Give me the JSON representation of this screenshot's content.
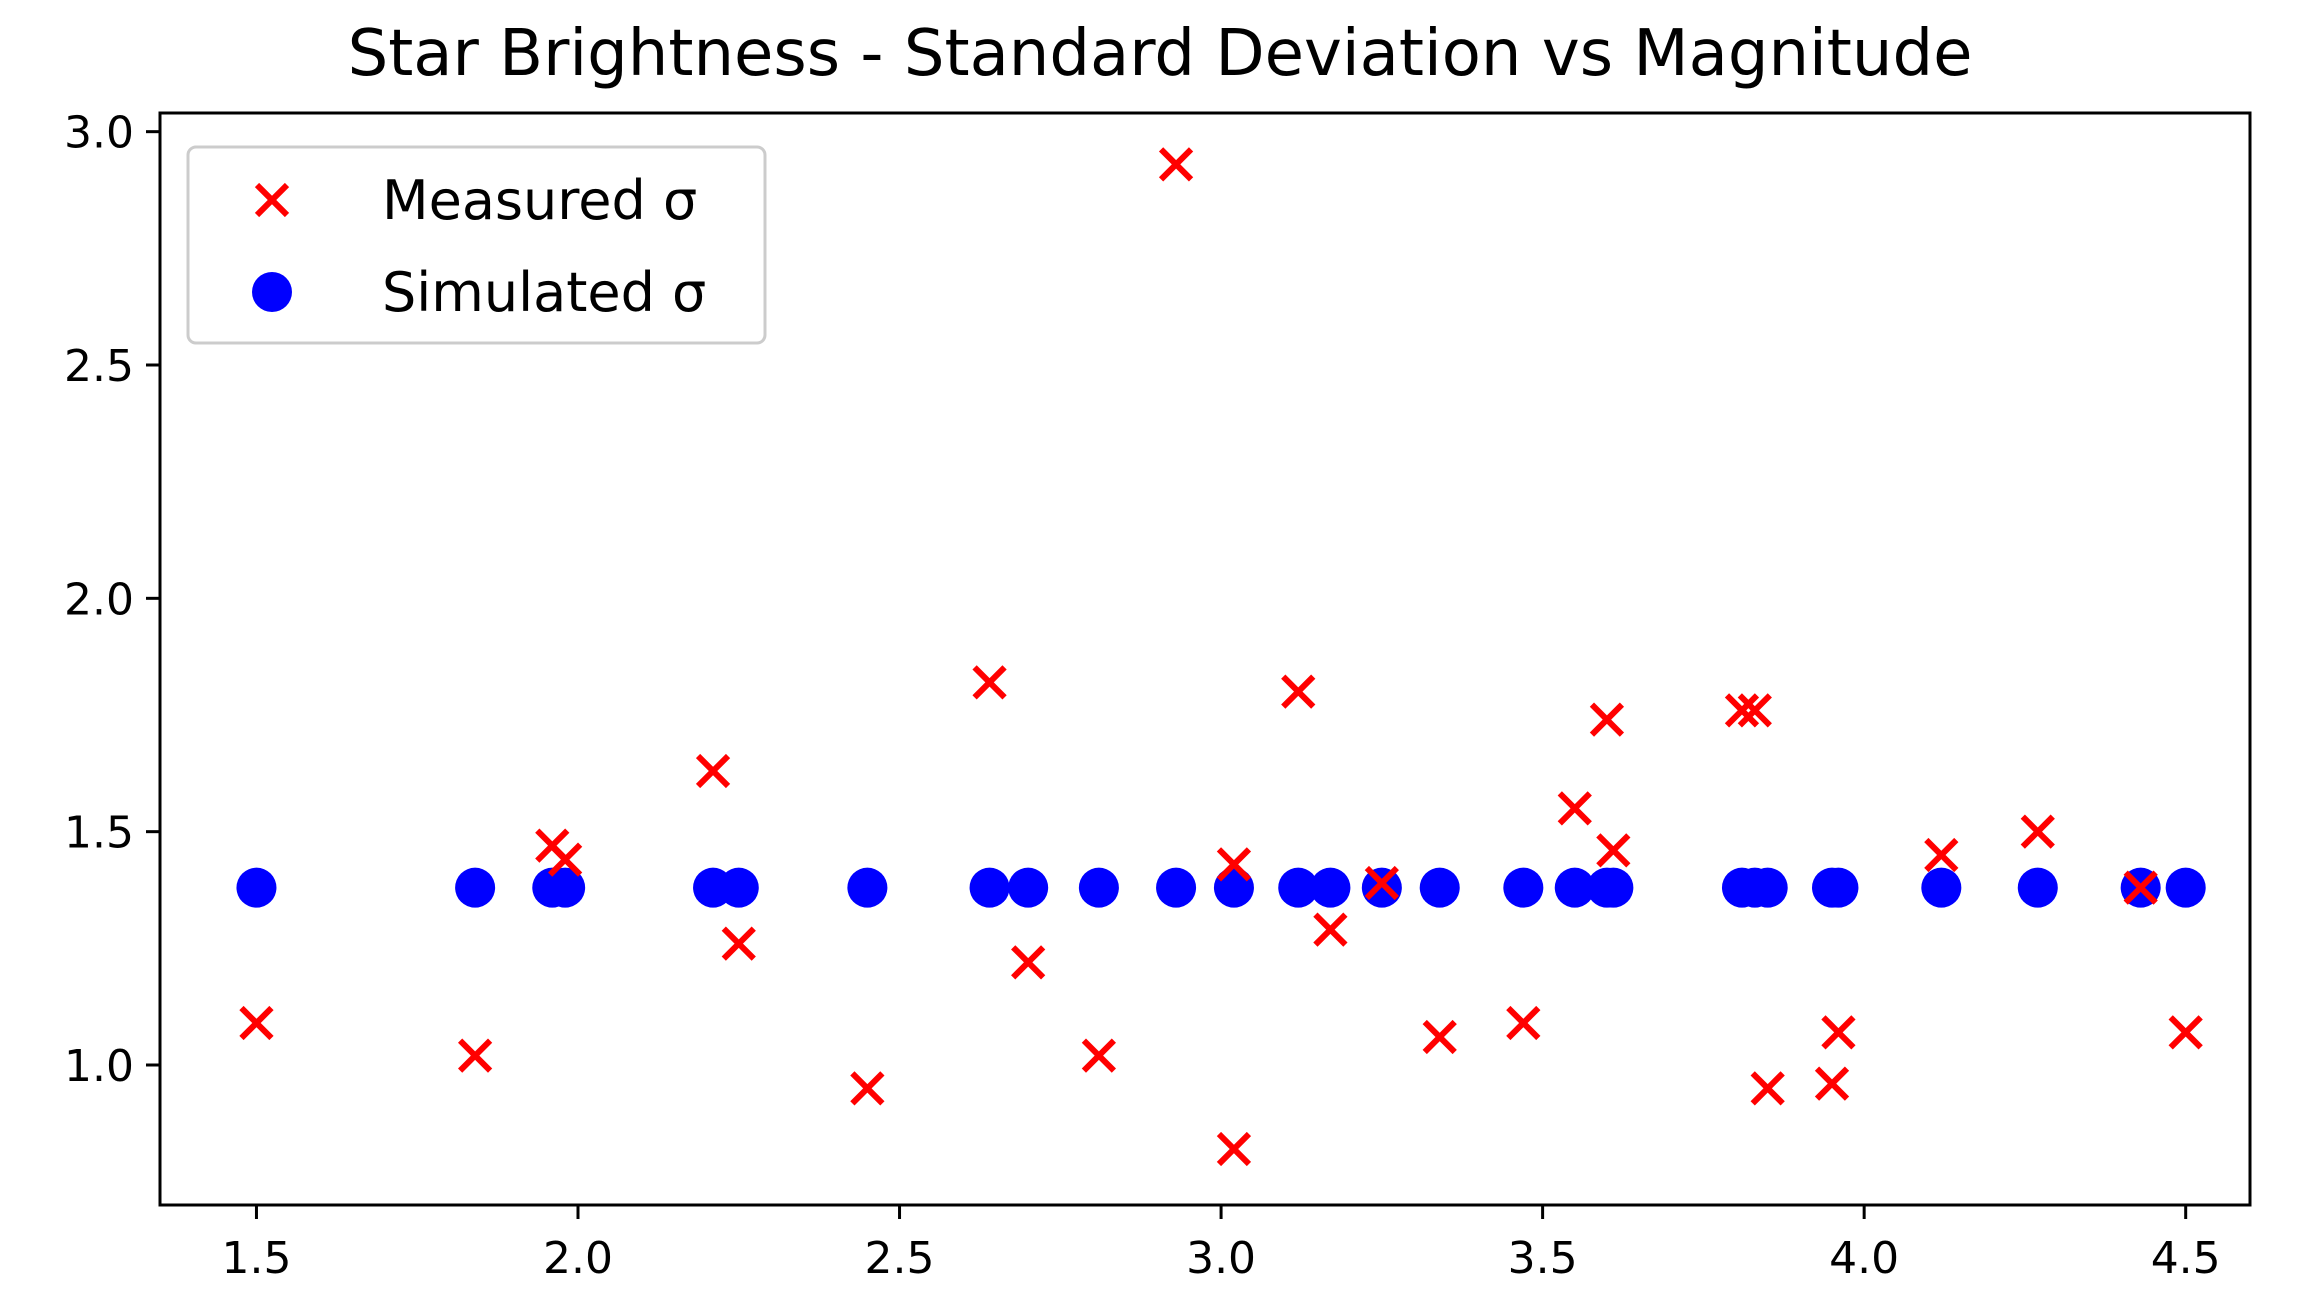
{
  "chart_data": {
    "type": "scatter",
    "title": "Star Brightness - Standard Deviation vs Magnitude",
    "xlabel": "",
    "ylabel": "",
    "xlim": [
      1.35,
      4.6
    ],
    "ylim": [
      0.7,
      3.04
    ],
    "xticks": [
      1.5,
      2.0,
      2.5,
      3.0,
      3.5,
      4.0,
      4.5
    ],
    "xtick_labels": [
      "1.5",
      "2.0",
      "2.5",
      "3.0",
      "3.5",
      "4.0",
      "4.5"
    ],
    "yticks": [
      1.0,
      1.5,
      2.0,
      2.5,
      3.0
    ],
    "ytick_labels": [
      "1.0",
      "1.5",
      "2.0",
      "2.5",
      "3.0"
    ],
    "grid": false,
    "legend_position": "top-left",
    "series": [
      {
        "name": "Measured σ",
        "legend_label": "Measured σ",
        "marker": "x",
        "color": "#ff0000",
        "points": [
          [
            1.5,
            1.09
          ],
          [
            1.84,
            1.02
          ],
          [
            1.96,
            1.47
          ],
          [
            1.98,
            1.44
          ],
          [
            2.21,
            1.63
          ],
          [
            2.25,
            1.26
          ],
          [
            2.45,
            0.95
          ],
          [
            2.64,
            1.82
          ],
          [
            2.7,
            1.22
          ],
          [
            2.81,
            1.02
          ],
          [
            2.93,
            2.93
          ],
          [
            3.02,
            1.43
          ],
          [
            3.02,
            0.82
          ],
          [
            3.12,
            1.8
          ],
          [
            3.17,
            1.29
          ],
          [
            3.25,
            1.39
          ],
          [
            3.34,
            1.06
          ],
          [
            3.47,
            1.09
          ],
          [
            3.55,
            1.55
          ],
          [
            3.6,
            1.74
          ],
          [
            3.61,
            1.46
          ],
          [
            3.81,
            1.76
          ],
          [
            3.83,
            1.76
          ],
          [
            3.85,
            0.95
          ],
          [
            3.95,
            0.96
          ],
          [
            3.96,
            1.07
          ],
          [
            4.12,
            1.45
          ],
          [
            4.27,
            1.5
          ],
          [
            4.43,
            1.38
          ],
          [
            4.5,
            1.07
          ]
        ]
      },
      {
        "name": "Simulated σ",
        "legend_label": "Simulated σ",
        "marker": "o",
        "color": "#0000ff",
        "points": [
          [
            1.5,
            1.38
          ],
          [
            1.84,
            1.38
          ],
          [
            1.96,
            1.38
          ],
          [
            1.98,
            1.38
          ],
          [
            2.21,
            1.38
          ],
          [
            2.25,
            1.38
          ],
          [
            2.45,
            1.38
          ],
          [
            2.64,
            1.38
          ],
          [
            2.7,
            1.38
          ],
          [
            2.81,
            1.38
          ],
          [
            2.93,
            1.38
          ],
          [
            3.02,
            1.38
          ],
          [
            3.12,
            1.38
          ],
          [
            3.17,
            1.38
          ],
          [
            3.25,
            1.38
          ],
          [
            3.34,
            1.38
          ],
          [
            3.47,
            1.38
          ],
          [
            3.55,
            1.38
          ],
          [
            3.6,
            1.38
          ],
          [
            3.61,
            1.38
          ],
          [
            3.81,
            1.38
          ],
          [
            3.83,
            1.38
          ],
          [
            3.85,
            1.38
          ],
          [
            3.95,
            1.38
          ],
          [
            3.96,
            1.38
          ],
          [
            4.12,
            1.38
          ],
          [
            4.27,
            1.38
          ],
          [
            4.43,
            1.38
          ],
          [
            4.5,
            1.38
          ]
        ]
      }
    ]
  }
}
